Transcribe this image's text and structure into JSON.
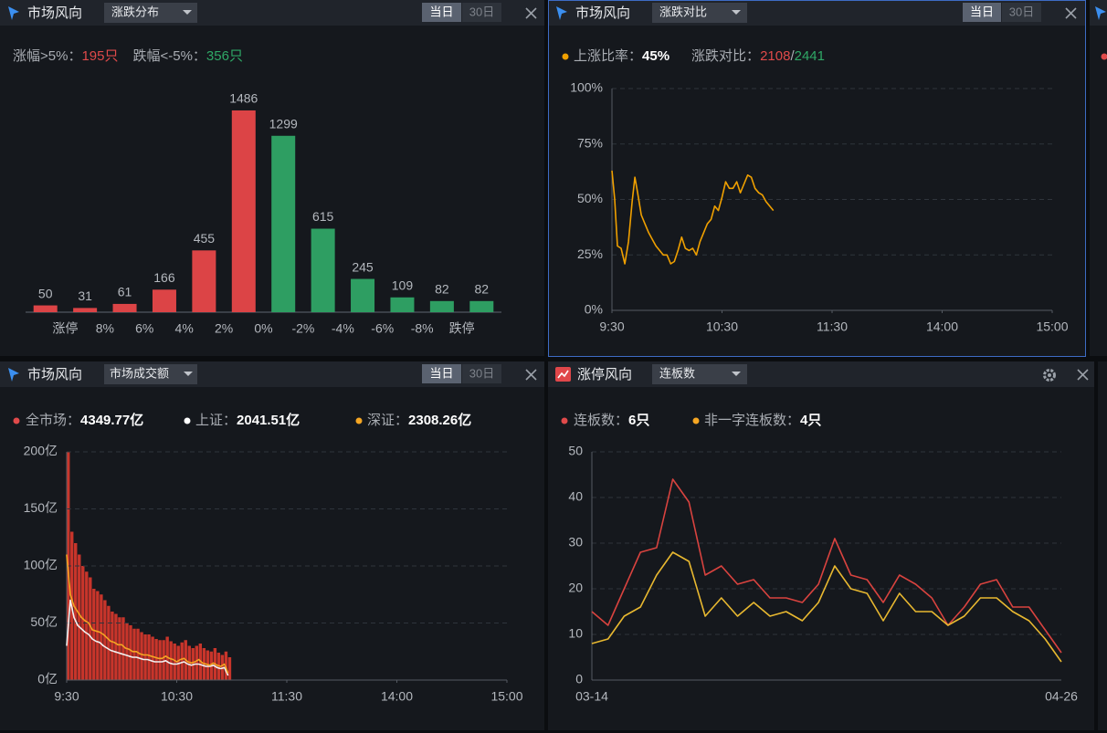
{
  "panels": [
    {
      "header": {
        "title": "市场风向",
        "dropdown": "涨跌分布",
        "buttons": [
          "当日",
          "30日"
        ]
      },
      "stats": [
        {
          "label": "涨幅>5%：",
          "value": "195只"
        },
        {
          "label": "跌幅<-5%：",
          "value": "356只"
        }
      ]
    },
    {
      "header": {
        "title": "市场风向",
        "dropdown": "涨跌对比",
        "buttons": [
          "当日",
          "30日"
        ]
      },
      "stats": [
        {
          "label": "上涨比率：",
          "value": "45%"
        },
        {
          "label": "涨跌对比：",
          "value": [
            "2108",
            "/",
            "2441"
          ]
        }
      ]
    },
    {
      "header": {
        "title": "市场风向",
        "dropdown": "市场成交额",
        "buttons": [
          "当日",
          "30日"
        ]
      },
      "stats": [
        {
          "label": "全市场：",
          "value": "4349.77亿"
        },
        {
          "label": "上证：",
          "value": "2041.51亿"
        },
        {
          "label": "深证：",
          "value": "2308.26亿"
        }
      ]
    },
    {
      "header": {
        "title": "涨停风向",
        "dropdown": "连板数"
      },
      "stats": [
        {
          "label": "连板数：",
          "value": "6只"
        },
        {
          "label": "非一字连板数：",
          "value": "4只"
        }
      ]
    }
  ],
  "chart_data": [
    {
      "type": "bar",
      "values": [
        50,
        31,
        61,
        166,
        455,
        1486,
        1299,
        615,
        245,
        109,
        82,
        82
      ],
      "colors": [
        "#dc4446",
        "#dc4446",
        "#dc4446",
        "#dc4446",
        "#dc4446",
        "#dc4446",
        "#2e9e62",
        "#2e9e62",
        "#2e9e62",
        "#2e9e62",
        "#2e9e62",
        "#2e9e62"
      ],
      "boundary_labels": [
        "涨停",
        "8%",
        "6%",
        "4%",
        "2%",
        "0%",
        "-2%",
        "-4%",
        "-6%",
        "-8%",
        "跌停"
      ],
      "ylim": [
        0,
        1600
      ]
    },
    {
      "type": "line",
      "x": [
        0,
        1.5,
        3,
        5,
        7,
        9,
        11,
        12.5,
        14,
        16,
        18,
        20,
        22,
        24,
        26,
        28,
        30,
        32,
        34,
        36,
        38,
        40,
        42,
        44,
        46,
        48,
        50,
        52,
        54,
        56,
        58,
        60,
        62,
        64,
        66,
        68,
        70,
        72,
        74,
        76,
        78,
        80,
        82,
        84,
        86,
        88
      ],
      "series": [
        {
          "color": "#f0a000",
          "values": [
            63,
            50,
            29,
            28,
            21,
            31,
            49,
            60,
            53,
            43,
            39,
            35,
            32,
            29,
            27,
            25,
            25,
            21,
            22,
            27,
            33,
            28,
            27,
            28,
            25,
            31,
            35,
            39,
            41,
            47,
            45,
            51,
            58,
            55,
            55,
            58,
            53,
            57,
            61,
            60,
            55,
            53,
            52,
            49,
            47,
            45
          ]
        }
      ],
      "xlim": [
        0,
        240
      ],
      "xticks": [
        {
          "value": 0,
          "label": "9:30"
        },
        {
          "value": 60,
          "label": "10:30"
        },
        {
          "value": 120,
          "label": "11:30"
        },
        {
          "value": 180,
          "label": "14:00"
        },
        {
          "value": 240,
          "label": "15:00"
        }
      ],
      "ylim": [
        0,
        100
      ],
      "yticks": [
        {
          "value": 0,
          "label": "0%"
        },
        {
          "value": 25,
          "label": "25%"
        },
        {
          "value": 50,
          "label": "50%"
        },
        {
          "value": 75,
          "label": "75%"
        },
        {
          "value": 100,
          "label": "100%"
        }
      ],
      "grid": true
    },
    {
      "type": "bar_line",
      "x": [
        0,
        2,
        4,
        6,
        8,
        10,
        12,
        14,
        16,
        18,
        20,
        22,
        24,
        26,
        28,
        30,
        32,
        34,
        36,
        38,
        40,
        42,
        44,
        46,
        48,
        50,
        52,
        54,
        56,
        58,
        60,
        62,
        64,
        66,
        68,
        70,
        72,
        74,
        76,
        78,
        80,
        82,
        84,
        86,
        88
      ],
      "series": [
        {
          "kind": "bar",
          "color": "#c8352b",
          "values": [
            200,
            130,
            120,
            110,
            100,
            95,
            90,
            80,
            78,
            75,
            70,
            65,
            60,
            58,
            55,
            55,
            50,
            48,
            45,
            45,
            42,
            40,
            40,
            38,
            36,
            35,
            35,
            38,
            34,
            32,
            30,
            33,
            35,
            30,
            28,
            30,
            32,
            28,
            26,
            25,
            28,
            24,
            22,
            25,
            20
          ]
        },
        {
          "kind": "line",
          "color": "#f2f2f2",
          "values": [
            30,
            70,
            55,
            48,
            45,
            42,
            40,
            36,
            34,
            33,
            30,
            28,
            26,
            25,
            24,
            23,
            22,
            21,
            20,
            20,
            19,
            18,
            18,
            17,
            16,
            16,
            16,
            17,
            15,
            14,
            14,
            15,
            16,
            14,
            13,
            14,
            14,
            13,
            12,
            12,
            13,
            11,
            10,
            11,
            4
          ]
        },
        {
          "kind": "line",
          "color": "#f5a623",
          "values": [
            110,
            75,
            65,
            60,
            55,
            52,
            50,
            44,
            43,
            42,
            40,
            37,
            34,
            33,
            31,
            31,
            28,
            27,
            25,
            25,
            23,
            22,
            22,
            21,
            20,
            19,
            19,
            21,
            19,
            18,
            16,
            18,
            19,
            16,
            15,
            16,
            18,
            15,
            14,
            13,
            15,
            13,
            12,
            14,
            6
          ]
        }
      ],
      "xlim": [
        0,
        240
      ],
      "xticks": [
        {
          "value": 0,
          "label": "9:30"
        },
        {
          "value": 60,
          "label": "10:30"
        },
        {
          "value": 120,
          "label": "11:30"
        },
        {
          "value": 180,
          "label": "14:00"
        },
        {
          "value": 240,
          "label": "15:00"
        }
      ],
      "ylim": [
        0,
        200
      ],
      "yticks": [
        {
          "value": 0,
          "label": "0亿"
        },
        {
          "value": 50,
          "label": "50亿"
        },
        {
          "value": 100,
          "label": "100亿"
        },
        {
          "value": 150,
          "label": "150亿"
        },
        {
          "value": 200,
          "label": "200亿"
        }
      ],
      "grid": true
    },
    {
      "type": "line",
      "categories": [
        "03-14",
        null,
        null,
        null,
        null,
        null,
        null,
        null,
        null,
        null,
        null,
        null,
        null,
        null,
        null,
        null,
        null,
        null,
        null,
        null,
        null,
        null,
        null,
        null,
        null,
        null,
        null,
        null,
        null,
        "04-26"
      ],
      "series": [
        {
          "color": "#d9433f",
          "values": [
            15,
            12,
            20,
            28,
            29,
            44,
            39,
            23,
            25,
            21,
            22,
            18,
            18,
            17,
            21,
            31,
            23,
            22,
            17,
            23,
            21,
            18,
            12,
            16,
            21,
            22,
            16,
            16,
            11,
            6
          ]
        },
        {
          "color": "#e8b830",
          "values": [
            8,
            9,
            14,
            16,
            23,
            28,
            26,
            14,
            18,
            14,
            17,
            14,
            15,
            13,
            17,
            25,
            20,
            19,
            13,
            19,
            15,
            15,
            12,
            14,
            18,
            18,
            15,
            13,
            9,
            4
          ]
        }
      ],
      "ylim": [
        0,
        50
      ],
      "yticks": [
        0,
        10,
        20,
        30,
        40,
        50
      ],
      "grid": true
    }
  ]
}
